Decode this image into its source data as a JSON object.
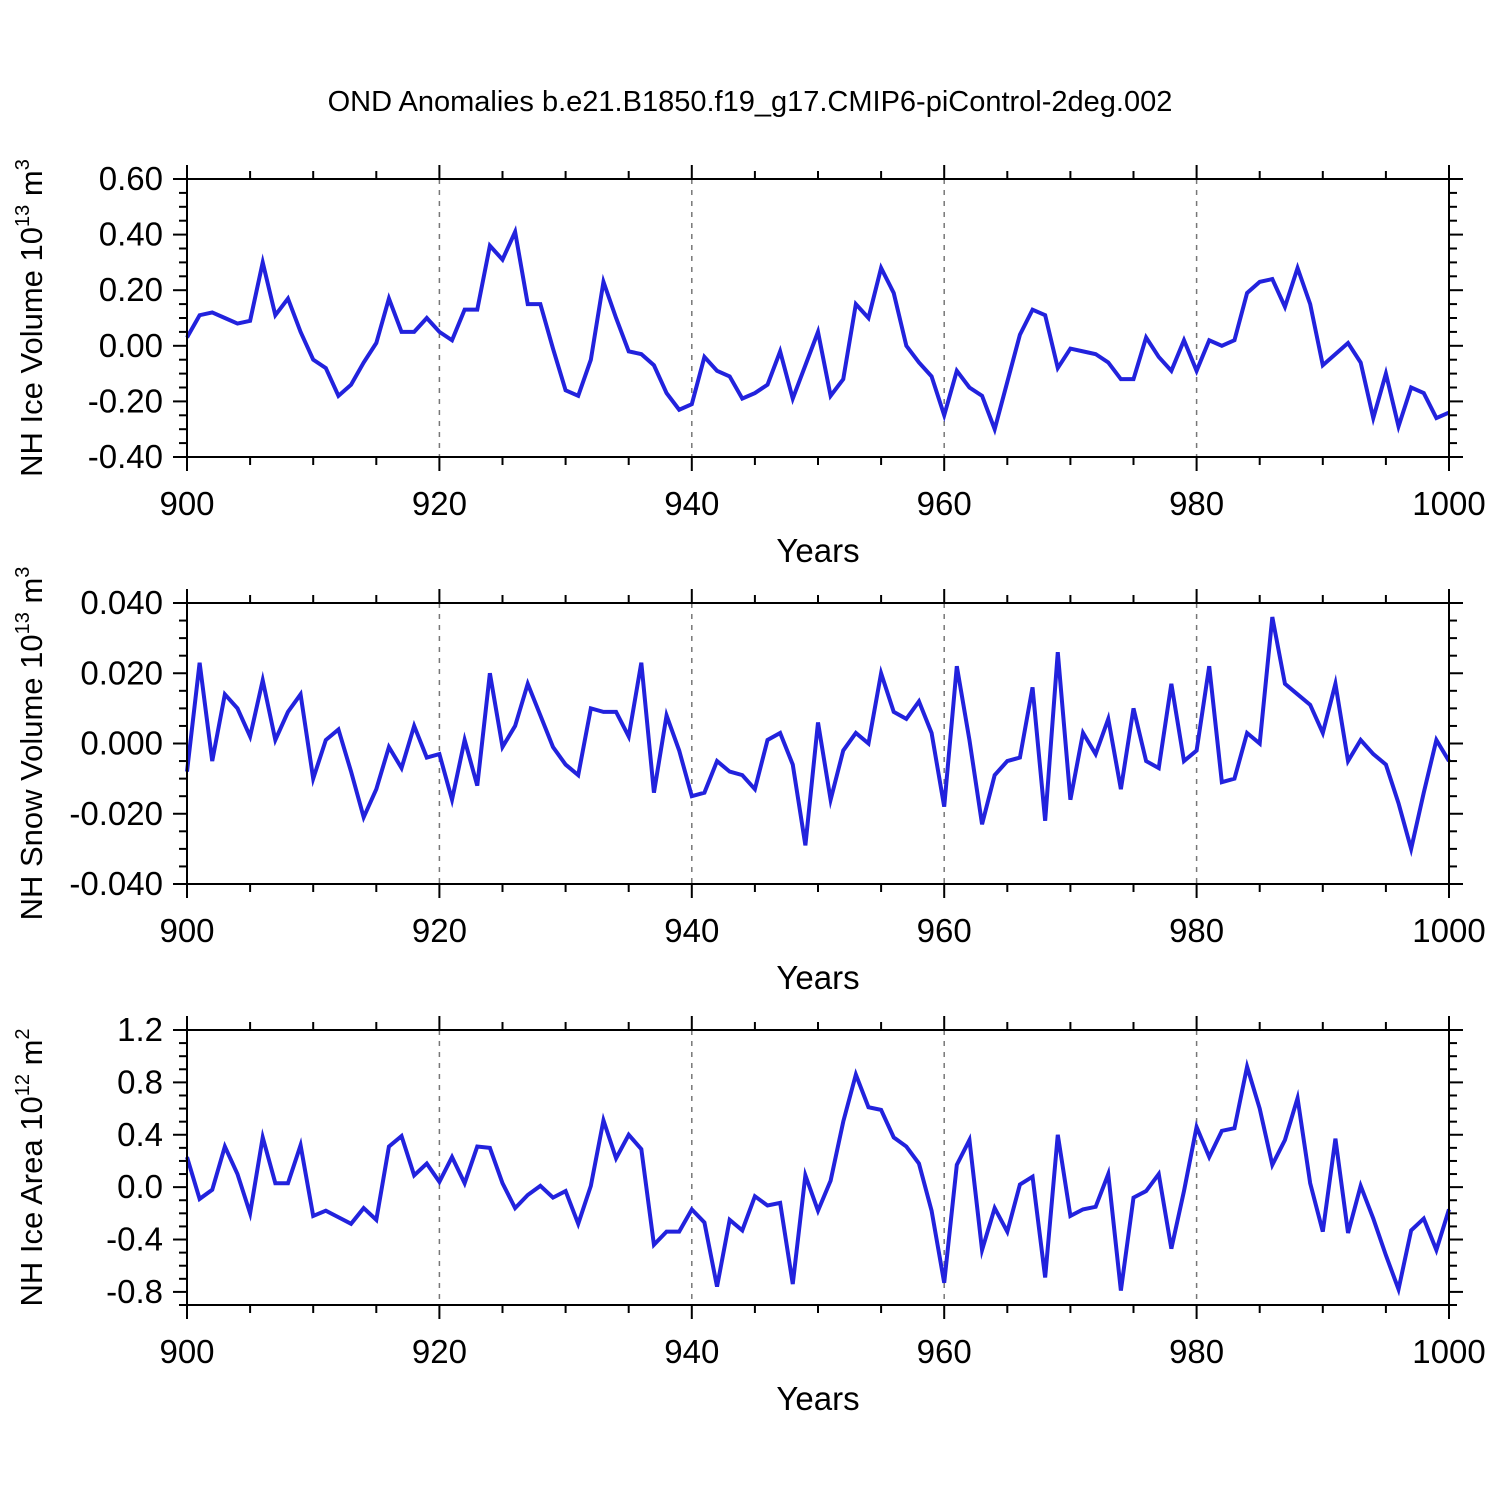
{
  "title": "OND Anomalies b.e21.B1850.f19_g17.CMIP6-piControl-2deg.002",
  "colors": {
    "line": "#2222dd",
    "grid": "#777777",
    "axis": "#000000",
    "text": "#000000"
  },
  "chart_data": [
    {
      "type": "line",
      "title": "OND Anomalies b.e21.B1850.f19_g17.CMIP6-piControl-2deg.002",
      "ylabel": "NH Ice Volume 10^13 m^3",
      "ylabel_parts": [
        {
          "text": "NH Ice Volume 10"
        },
        {
          "text": "13",
          "sup": true
        },
        {
          "text": " m"
        },
        {
          "text": "3",
          "sup": true
        }
      ],
      "xlabel": "Years",
      "legend": "none",
      "grid": "vertical-dashed",
      "x": {
        "min": 900,
        "max": 1000,
        "step": 1,
        "major": 20,
        "minor": 5,
        "grid_years": [
          920,
          940,
          960,
          980
        ],
        "tick_labels": [
          "900",
          "920",
          "940",
          "960",
          "980",
          "1000"
        ]
      },
      "y": {
        "min": -0.4,
        "max": 0.6,
        "major_start": -0.4,
        "major_step": 0.2,
        "minor_start": -0.4,
        "minor_step": 0.05,
        "decimals": 2,
        "tick_labels": [
          "-0.40",
          "-0.20",
          "0.00",
          "0.20",
          "0.40",
          "0.60"
        ]
      },
      "series": [
        {
          "name": "NH Ice Volume anomaly",
          "x_start": 900,
          "values": [
            0.03,
            0.11,
            0.12,
            0.1,
            0.08,
            0.09,
            0.3,
            0.11,
            0.17,
            0.05,
            -0.05,
            -0.08,
            -0.18,
            -0.14,
            -0.06,
            0.01,
            0.17,
            0.05,
            0.05,
            0.1,
            0.05,
            0.02,
            0.13,
            0.13,
            0.36,
            0.31,
            0.41,
            0.15,
            0.15,
            -0.01,
            -0.16,
            -0.18,
            -0.05,
            0.23,
            0.1,
            -0.02,
            -0.03,
            -0.07,
            -0.17,
            -0.23,
            -0.21,
            -0.04,
            -0.09,
            -0.11,
            -0.19,
            -0.17,
            -0.14,
            -0.02,
            -0.19,
            -0.07,
            0.05,
            -0.18,
            -0.12,
            0.15,
            0.1,
            0.28,
            0.19,
            0.0,
            -0.06,
            -0.11,
            -0.25,
            -0.09,
            -0.15,
            -0.18,
            -0.3,
            -0.13,
            0.04,
            0.13,
            0.11,
            -0.08,
            -0.01,
            -0.02,
            -0.03,
            -0.06,
            -0.12,
            -0.12,
            0.03,
            -0.04,
            -0.09,
            0.02,
            -0.09,
            0.02,
            0.0,
            0.02,
            0.19,
            0.23,
            0.24,
            0.14,
            0.28,
            0.15,
            -0.07,
            -0.03,
            0.01,
            -0.06,
            -0.26,
            -0.1,
            -0.29,
            -0.15,
            -0.17,
            -0.26,
            -0.24
          ]
        }
      ]
    },
    {
      "type": "line",
      "title": "",
      "ylabel": "NH Snow Volume 10^13 m^3",
      "ylabel_parts": [
        {
          "text": "NH Snow Volume 10"
        },
        {
          "text": "13",
          "sup": true
        },
        {
          "text": " m"
        },
        {
          "text": "3",
          "sup": true
        }
      ],
      "xlabel": "Years",
      "legend": "none",
      "grid": "vertical-dashed",
      "x": {
        "min": 900,
        "max": 1000,
        "step": 1,
        "major": 20,
        "minor": 5,
        "grid_years": [
          920,
          940,
          960,
          980
        ],
        "tick_labels": [
          "900",
          "920",
          "940",
          "960",
          "980",
          "1000"
        ]
      },
      "y": {
        "min": -0.04,
        "max": 0.04,
        "major_start": -0.04,
        "major_step": 0.02,
        "minor_start": -0.04,
        "minor_step": 0.005,
        "decimals": 3,
        "tick_labels": [
          "-0.040",
          "-0.020",
          "0.000",
          "0.020",
          "0.040"
        ]
      },
      "series": [
        {
          "name": "NH Snow Volume anomaly",
          "x_start": 900,
          "values": [
            -0.008,
            0.023,
            -0.005,
            0.014,
            0.01,
            0.002,
            0.018,
            0.001,
            0.009,
            0.014,
            -0.01,
            0.001,
            0.004,
            -0.008,
            -0.021,
            -0.013,
            -0.001,
            -0.007,
            0.005,
            -0.004,
            -0.003,
            -0.016,
            0.001,
            -0.012,
            0.02,
            -0.001,
            0.005,
            0.017,
            0.008,
            -0.001,
            -0.006,
            -0.009,
            0.01,
            0.009,
            0.009,
            0.002,
            0.023,
            -0.014,
            0.008,
            -0.002,
            -0.015,
            -0.014,
            -0.005,
            -0.008,
            -0.009,
            -0.013,
            0.001,
            0.003,
            -0.006,
            -0.029,
            0.006,
            -0.016,
            -0.002,
            0.003,
            0.0,
            0.02,
            0.009,
            0.007,
            0.012,
            0.003,
            -0.018,
            0.022,
            0.001,
            -0.023,
            -0.009,
            -0.005,
            -0.004,
            0.016,
            -0.022,
            0.026,
            -0.016,
            0.003,
            -0.003,
            0.007,
            -0.013,
            0.01,
            -0.005,
            -0.007,
            0.017,
            -0.005,
            -0.002,
            0.022,
            -0.011,
            -0.01,
            0.003,
            0.0,
            0.036,
            0.017,
            0.014,
            0.011,
            0.003,
            0.017,
            -0.005,
            0.001,
            -0.003,
            -0.006,
            -0.017,
            -0.03,
            -0.014,
            0.001,
            -0.005
          ]
        }
      ]
    },
    {
      "type": "line",
      "title": "",
      "ylabel": "NH Ice Area 10^12 m^2",
      "ylabel_parts": [
        {
          "text": "NH Ice Area 10"
        },
        {
          "text": "12",
          "sup": true
        },
        {
          "text": " m"
        },
        {
          "text": "2",
          "sup": true
        }
      ],
      "xlabel": "Years",
      "legend": "none",
      "grid": "vertical-dashed",
      "x": {
        "min": 900,
        "max": 1000,
        "step": 1,
        "major": 20,
        "minor": 5,
        "grid_years": [
          920,
          940,
          960,
          980
        ],
        "tick_labels": [
          "900",
          "920",
          "940",
          "960",
          "980",
          "1000"
        ]
      },
      "y": {
        "min": -0.9,
        "max": 1.2,
        "major_start": -0.8,
        "major_step": 0.4,
        "minor_start": -0.9,
        "minor_step": 0.1,
        "decimals": 1,
        "tick_labels": [
          "-0.8",
          "-0.4",
          "0.0",
          "0.4",
          "0.8",
          "1.2"
        ]
      },
      "series": [
        {
          "name": "NH Ice Area anomaly",
          "x_start": 900,
          "values": [
            0.23,
            -0.09,
            -0.02,
            0.31,
            0.1,
            -0.2,
            0.38,
            0.03,
            0.03,
            0.32,
            -0.22,
            -0.18,
            -0.23,
            -0.28,
            -0.16,
            -0.25,
            0.31,
            0.39,
            0.09,
            0.18,
            0.04,
            0.23,
            0.03,
            0.31,
            0.3,
            0.03,
            -0.16,
            -0.06,
            0.01,
            -0.08,
            -0.03,
            -0.28,
            0.01,
            0.51,
            0.22,
            0.4,
            0.29,
            -0.44,
            -0.34,
            -0.34,
            -0.17,
            -0.27,
            -0.76,
            -0.25,
            -0.33,
            -0.07,
            -0.14,
            -0.12,
            -0.74,
            0.09,
            -0.18,
            0.05,
            0.5,
            0.86,
            0.61,
            0.59,
            0.38,
            0.31,
            0.18,
            -0.18,
            -0.73,
            0.17,
            0.36,
            -0.48,
            -0.16,
            -0.34,
            0.02,
            0.08,
            -0.69,
            0.4,
            -0.22,
            -0.17,
            -0.15,
            0.1,
            -0.79,
            -0.08,
            -0.03,
            0.1,
            -0.47,
            -0.03,
            0.46,
            0.23,
            0.43,
            0.45,
            0.92,
            0.6,
            0.17,
            0.36,
            0.68,
            0.03,
            -0.34,
            0.37,
            -0.35,
            0.01,
            -0.24,
            -0.52,
            -0.78,
            -0.33,
            -0.24,
            -0.48,
            -0.17
          ]
        }
      ]
    }
  ]
}
